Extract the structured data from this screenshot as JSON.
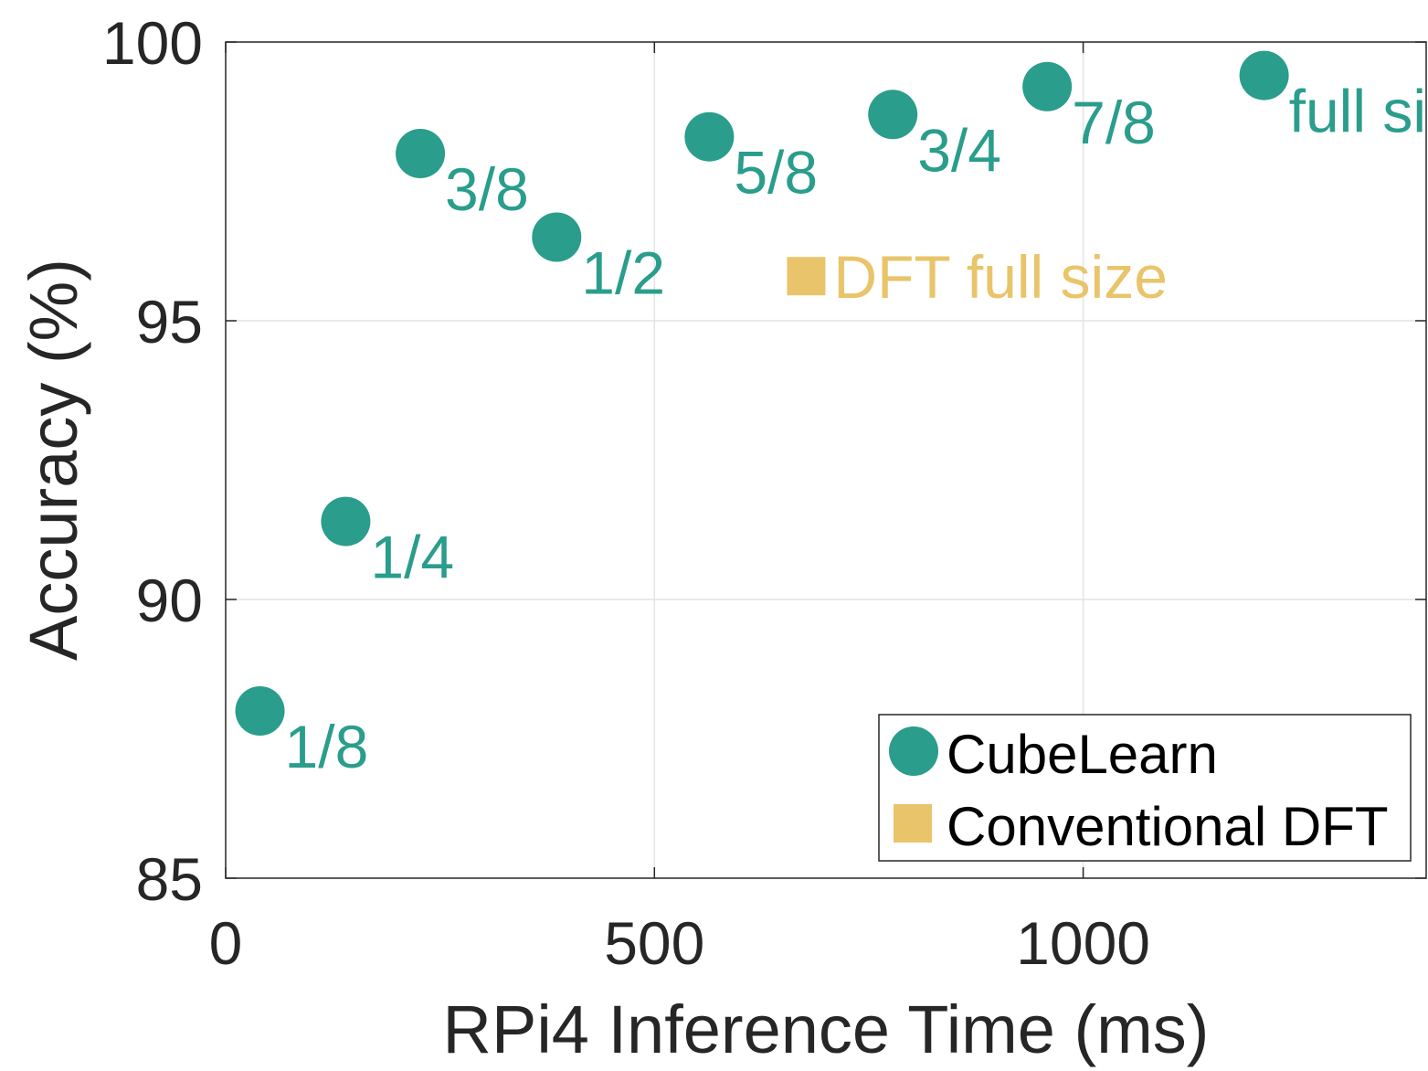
{
  "chart_data": {
    "type": "scatter",
    "title": "",
    "xlabel": "RPi4 Inference Time (ms)",
    "ylabel": "Accuracy (%)",
    "xlim": [
      0,
      1400
    ],
    "ylim": [
      85,
      100
    ],
    "xticks": [
      0,
      500,
      1000
    ],
    "xtick_labels": [
      "0",
      "500",
      "1000"
    ],
    "yticks": [
      85,
      90,
      95,
      100
    ],
    "ytick_labels": [
      "85",
      "90",
      "95",
      "100"
    ],
    "grid": true,
    "legend_position": "bottom-right",
    "series": [
      {
        "name": "CubeLearn",
        "marker": "circle",
        "color": "#2a9d8c",
        "points": [
          {
            "label": "1/8",
            "x": 40,
            "y": 88.0
          },
          {
            "label": "1/4",
            "x": 140,
            "y": 91.4
          },
          {
            "label": "3/8",
            "x": 227,
            "y": 98.0
          },
          {
            "label": "1/2",
            "x": 386,
            "y": 96.5
          },
          {
            "label": "5/8",
            "x": 564,
            "y": 98.3
          },
          {
            "label": "3/4",
            "x": 778,
            "y": 98.7
          },
          {
            "label": "7/8",
            "x": 958,
            "y": 99.2
          },
          {
            "label": "full size",
            "x": 1211,
            "y": 99.4
          }
        ]
      },
      {
        "name": "Conventional DFT",
        "marker": "square",
        "color": "#e9c46a",
        "points": [
          {
            "label": "DFT full size",
            "x": 677,
            "y": 95.8
          }
        ]
      }
    ]
  }
}
